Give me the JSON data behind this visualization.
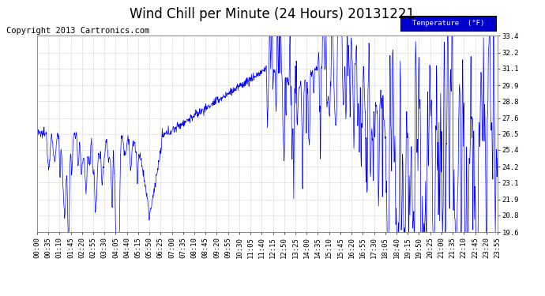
{
  "title": "Wind Chill per Minute (24 Hours) 20131221",
  "copyright_text": "Copyright 2013 Cartronics.com",
  "legend_label": "Temperature  (°F)",
  "ylim": [
    19.6,
    33.4
  ],
  "yticks": [
    19.6,
    20.8,
    21.9,
    23.1,
    24.2,
    25.4,
    26.5,
    27.6,
    28.8,
    29.9,
    31.1,
    32.2,
    33.4
  ],
  "bg_color": "#ffffff",
  "plot_bg_color": "#ffffff",
  "grid_color": "#bbbbbb",
  "line_color": "#0000ff",
  "title_fontsize": 12,
  "tick_fontsize": 6.5,
  "copyright_fontsize": 7.5,
  "xtick_labels": [
    "00:00",
    "00:35",
    "01:10",
    "01:45",
    "02:20",
    "02:55",
    "03:30",
    "04:05",
    "04:40",
    "05:15",
    "05:50",
    "06:25",
    "07:00",
    "07:35",
    "08:10",
    "08:45",
    "09:20",
    "09:55",
    "10:30",
    "11:05",
    "11:40",
    "12:15",
    "12:50",
    "13:25",
    "14:00",
    "14:35",
    "15:10",
    "15:45",
    "16:20",
    "16:55",
    "17:30",
    "18:05",
    "18:40",
    "19:15",
    "19:50",
    "20:25",
    "21:00",
    "21:35",
    "22:10",
    "22:45",
    "23:20",
    "23:55"
  ],
  "n_points": 1440,
  "legend_bg": "#0000cc",
  "legend_fg": "#ffffff"
}
